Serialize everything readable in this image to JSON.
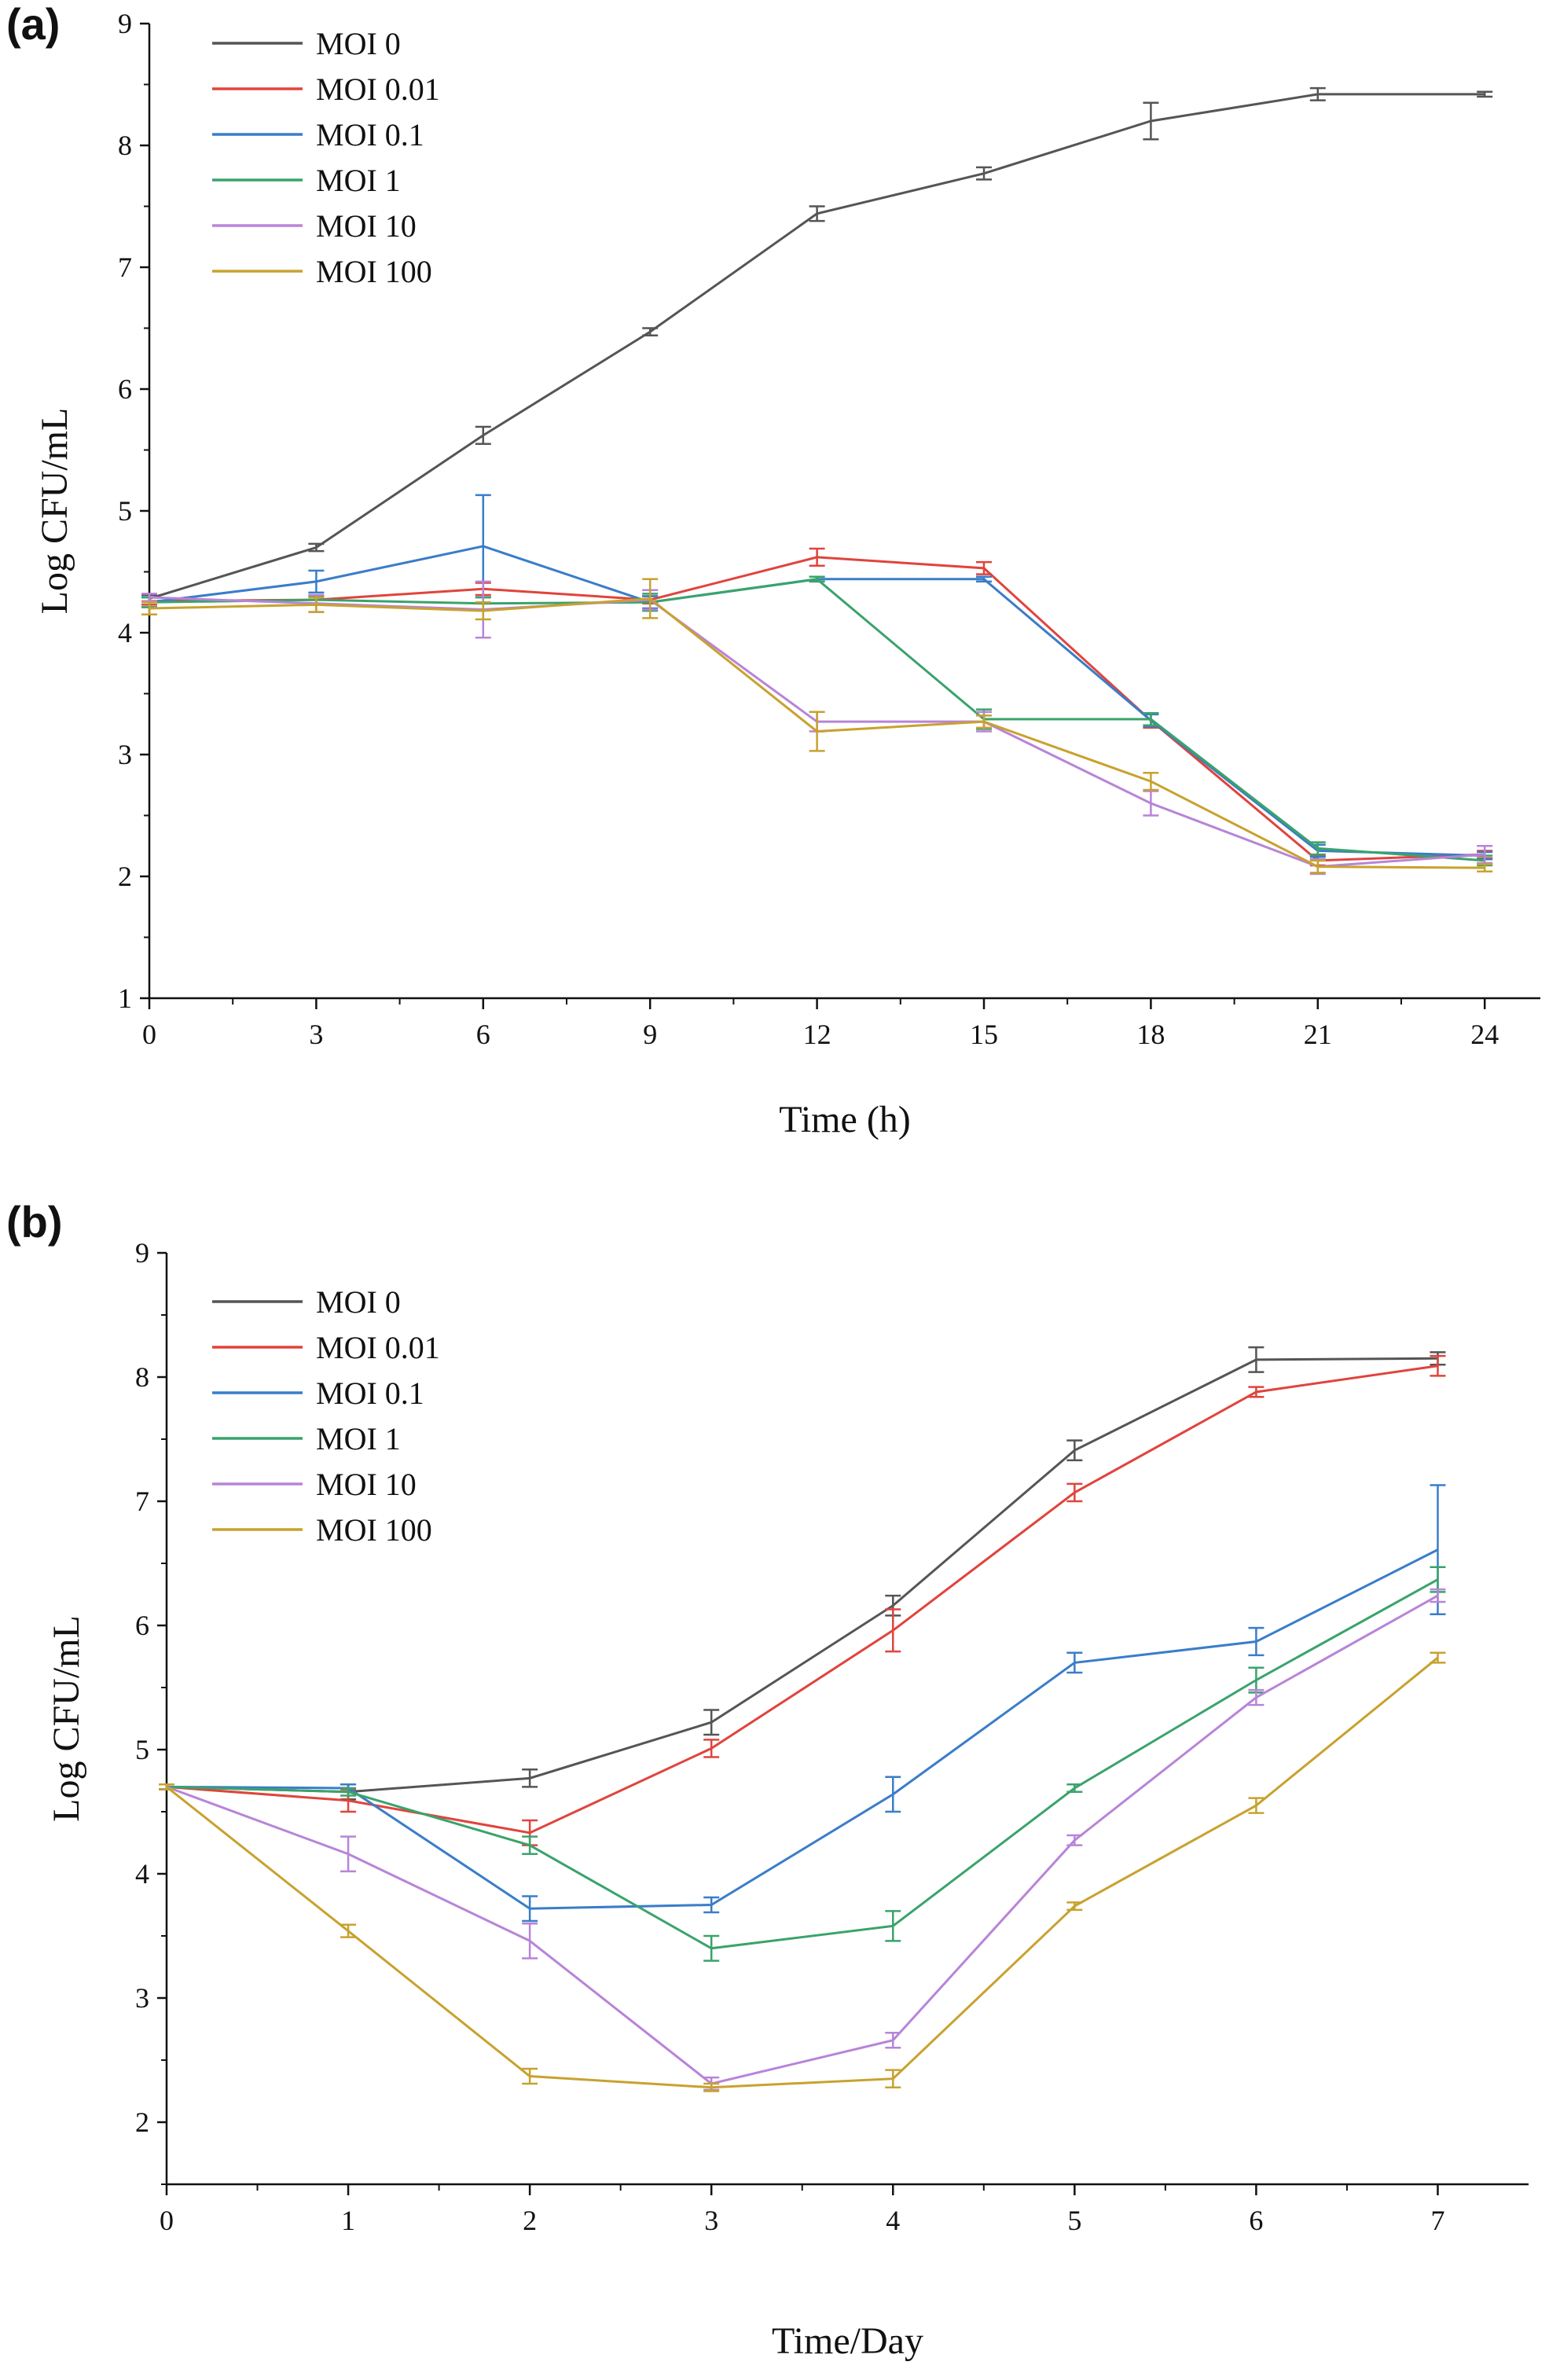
{
  "chart_data": [
    {
      "type": "line",
      "panel_label": "(a)",
      "xlabel": "Time  (h)",
      "ylabel": "Log CFU/mL",
      "xlim": [
        0,
        25
      ],
      "ylim": [
        1,
        9
      ],
      "xticks": [
        0,
        3,
        6,
        9,
        12,
        15,
        18,
        21,
        24
      ],
      "yticks": [
        1,
        2,
        3,
        4,
        5,
        6,
        7,
        8,
        9
      ],
      "x": [
        0,
        3,
        6,
        9,
        12,
        15,
        18,
        21,
        24
      ],
      "legend": "top-left",
      "grid": false,
      "series": [
        {
          "name": "MOI 0",
          "color": "#555555",
          "values": [
            4.28,
            4.7,
            5.62,
            6.47,
            7.44,
            7.77,
            8.2,
            8.42,
            8.42
          ],
          "errors": [
            0.03,
            0.03,
            0.07,
            0.03,
            0.06,
            0.05,
            0.15,
            0.05,
            0.02
          ]
        },
        {
          "name": "MOI 0.01",
          "color": "#e0443c",
          "values": [
            4.26,
            4.27,
            4.36,
            4.27,
            4.62,
            4.53,
            3.28,
            2.13,
            2.18
          ],
          "errors": [
            0.03,
            0.03,
            0.05,
            0.03,
            0.07,
            0.05,
            0.06,
            0.04,
            0.03
          ]
        },
        {
          "name": "MOI 0.1",
          "color": "#3a7dc9",
          "values": [
            4.25,
            4.42,
            4.71,
            4.25,
            4.44,
            4.44,
            3.28,
            2.21,
            2.17
          ],
          "errors": [
            0.04,
            0.09,
            0.42,
            0.05,
            0.02,
            0.02,
            0.05,
            0.05,
            0.03
          ]
        },
        {
          "name": "MOI 1",
          "color": "#3aa36b",
          "values": [
            4.25,
            4.27,
            4.24,
            4.25,
            4.44,
            3.29,
            3.29,
            2.23,
            2.13
          ],
          "errors": [
            0.04,
            0.03,
            0.05,
            0.07,
            0.02,
            0.08,
            0.05,
            0.05,
            0.04
          ]
        },
        {
          "name": "MOI 10",
          "color": "#b884d8",
          "values": [
            4.29,
            4.24,
            4.19,
            4.27,
            3.27,
            3.27,
            2.6,
            2.08,
            2.18
          ],
          "errors": [
            0.03,
            0.07,
            0.23,
            0.08,
            0.08,
            0.08,
            0.1,
            0.06,
            0.07
          ]
        },
        {
          "name": "MOI 100",
          "color": "#c8a22e",
          "values": [
            4.2,
            4.23,
            4.18,
            4.28,
            3.19,
            3.27,
            2.78,
            2.08,
            2.07
          ],
          "errors": [
            0.05,
            0.06,
            0.07,
            0.16,
            0.16,
            0.05,
            0.07,
            0.05,
            0.03
          ]
        }
      ]
    },
    {
      "type": "line",
      "panel_label": "(b)",
      "xlabel": "Time/Day",
      "ylabel": "Log CFU/mL",
      "xlim": [
        0,
        7.5
      ],
      "ylim": [
        1.5,
        9
      ],
      "xticks": [
        0,
        1,
        2,
        3,
        4,
        5,
        6,
        7
      ],
      "yticks": [
        2,
        3,
        4,
        5,
        6,
        7,
        8,
        9
      ],
      "x": [
        0,
        1,
        2,
        3,
        4,
        5,
        6,
        7
      ],
      "legend": "top-left",
      "grid": false,
      "series": [
        {
          "name": "MOI 0",
          "color": "#555555",
          "values": [
            4.7,
            4.66,
            4.77,
            5.22,
            6.16,
            7.41,
            8.14,
            8.15
          ],
          "errors": [
            0.02,
            0.06,
            0.07,
            0.1,
            0.08,
            0.08,
            0.1,
            0.05
          ]
        },
        {
          "name": "MOI 0.01",
          "color": "#e0443c",
          "values": [
            4.7,
            4.59,
            4.33,
            5.01,
            5.96,
            7.07,
            7.88,
            8.09
          ],
          "errors": [
            0.02,
            0.09,
            0.1,
            0.07,
            0.17,
            0.07,
            0.04,
            0.08
          ]
        },
        {
          "name": "MOI 0.1",
          "color": "#3a7dc9",
          "values": [
            4.7,
            4.69,
            3.72,
            3.75,
            4.64,
            5.7,
            5.87,
            6.61
          ],
          "errors": [
            0.02,
            0.03,
            0.1,
            0.06,
            0.14,
            0.08,
            0.11,
            0.52
          ]
        },
        {
          "name": "MOI 1",
          "color": "#3aa36b",
          "values": [
            4.7,
            4.66,
            4.23,
            3.4,
            3.58,
            4.69,
            5.56,
            6.37
          ],
          "errors": [
            0.02,
            0.03,
            0.07,
            0.1,
            0.12,
            0.03,
            0.1,
            0.1
          ]
        },
        {
          "name": "MOI 10",
          "color": "#b884d8",
          "values": [
            4.7,
            4.16,
            3.46,
            2.31,
            2.66,
            4.27,
            5.42,
            6.24
          ],
          "errors": [
            0.02,
            0.14,
            0.14,
            0.05,
            0.06,
            0.04,
            0.06,
            0.05
          ]
        },
        {
          "name": "MOI 100",
          "color": "#c8a22e",
          "values": [
            4.7,
            3.54,
            2.37,
            2.28,
            2.35,
            3.74,
            4.55,
            5.74
          ],
          "errors": [
            0.02,
            0.05,
            0.06,
            0.03,
            0.07,
            0.03,
            0.06,
            0.04
          ]
        }
      ]
    }
  ]
}
